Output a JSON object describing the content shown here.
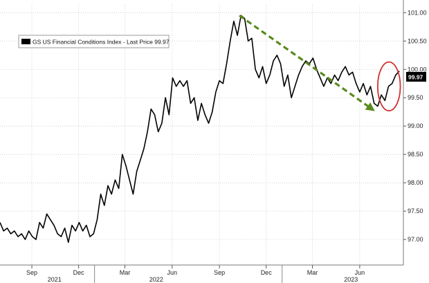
{
  "chart_data": {
    "type": "line",
    "title": "",
    "legend": {
      "entries": [
        "GS US Financial Conditions Index - Last Price 99.97"
      ],
      "placement": "top-left"
    },
    "last_price_label": "99.97",
    "ylim": [
      96.55,
      101.15
    ],
    "y_ticks": [
      "101.00",
      "100.50",
      "100.00",
      "99.50",
      "99.00",
      "98.50",
      "98.00",
      "97.50",
      "97.00"
    ],
    "y_tick_values": [
      101.0,
      100.5,
      100.0,
      99.5,
      99.0,
      98.5,
      98.0,
      97.5,
      97.0
    ],
    "x_ticks": [
      "Sep",
      "Dec",
      "Mar",
      "Jun",
      "Sep",
      "Dec",
      "Mar",
      "Jun"
    ],
    "x_tick_dates": [
      "2021-09-01",
      "2021-12-01",
      "2022-03-01",
      "2022-06-01",
      "2022-09-01",
      "2022-12-01",
      "2023-03-01",
      "2023-06-01"
    ],
    "years": [
      "2021",
      "2022",
      "2023"
    ],
    "year_dates": [
      "2021-10-15",
      "2022-05-01",
      "2023-05-15"
    ],
    "xlim": [
      "2021-07-01",
      "2023-08-25"
    ],
    "grid": true,
    "series": [
      {
        "name": "GS US Financial Conditions Index",
        "color": "#000000",
        "points": [
          [
            "2021-07-01",
            97.3
          ],
          [
            "2021-07-08",
            97.15
          ],
          [
            "2021-07-15",
            97.2
          ],
          [
            "2021-07-22",
            97.1
          ],
          [
            "2021-07-29",
            97.15
          ],
          [
            "2021-08-05",
            97.05
          ],
          [
            "2021-08-12",
            97.1
          ],
          [
            "2021-08-19",
            97.0
          ],
          [
            "2021-08-26",
            97.15
          ],
          [
            "2021-09-02",
            97.05
          ],
          [
            "2021-09-09",
            97.0
          ],
          [
            "2021-09-16",
            97.3
          ],
          [
            "2021-09-23",
            97.2
          ],
          [
            "2021-09-30",
            97.45
          ],
          [
            "2021-10-07",
            97.35
          ],
          [
            "2021-10-14",
            97.25
          ],
          [
            "2021-10-21",
            97.1
          ],
          [
            "2021-10-28",
            97.05
          ],
          [
            "2021-11-04",
            97.2
          ],
          [
            "2021-11-11",
            96.95
          ],
          [
            "2021-11-18",
            97.25
          ],
          [
            "2021-11-25",
            97.15
          ],
          [
            "2021-12-02",
            97.3
          ],
          [
            "2021-12-09",
            97.15
          ],
          [
            "2021-12-16",
            97.25
          ],
          [
            "2021-12-23",
            97.05
          ],
          [
            "2021-12-30",
            97.1
          ],
          [
            "2022-01-06",
            97.35
          ],
          [
            "2022-01-13",
            97.8
          ],
          [
            "2022-01-20",
            97.6
          ],
          [
            "2022-01-27",
            97.95
          ],
          [
            "2022-02-03",
            97.8
          ],
          [
            "2022-02-10",
            98.05
          ],
          [
            "2022-02-17",
            97.9
          ],
          [
            "2022-02-24",
            98.5
          ],
          [
            "2022-03-03",
            98.3
          ],
          [
            "2022-03-10",
            98.05
          ],
          [
            "2022-03-17",
            97.8
          ],
          [
            "2022-03-24",
            98.2
          ],
          [
            "2022-03-31",
            98.4
          ],
          [
            "2022-04-07",
            98.6
          ],
          [
            "2022-04-14",
            98.9
          ],
          [
            "2022-04-21",
            99.3
          ],
          [
            "2022-04-28",
            99.2
          ],
          [
            "2022-05-05",
            98.9
          ],
          [
            "2022-05-12",
            99.05
          ],
          [
            "2022-05-19",
            99.5
          ],
          [
            "2022-05-26",
            99.2
          ],
          [
            "2022-06-02",
            99.85
          ],
          [
            "2022-06-09",
            99.7
          ],
          [
            "2022-06-16",
            99.8
          ],
          [
            "2022-06-23",
            99.7
          ],
          [
            "2022-06-30",
            99.8
          ],
          [
            "2022-07-07",
            99.4
          ],
          [
            "2022-07-14",
            99.5
          ],
          [
            "2022-07-21",
            99.1
          ],
          [
            "2022-07-28",
            99.4
          ],
          [
            "2022-08-04",
            99.2
          ],
          [
            "2022-08-11",
            99.05
          ],
          [
            "2022-08-18",
            99.25
          ],
          [
            "2022-08-25",
            99.6
          ],
          [
            "2022-09-01",
            99.8
          ],
          [
            "2022-09-08",
            99.75
          ],
          [
            "2022-09-15",
            100.1
          ],
          [
            "2022-09-22",
            100.5
          ],
          [
            "2022-09-29",
            100.85
          ],
          [
            "2022-10-06",
            100.6
          ],
          [
            "2022-10-13",
            100.95
          ],
          [
            "2022-10-20",
            100.9
          ],
          [
            "2022-10-27",
            100.5
          ],
          [
            "2022-11-03",
            100.55
          ],
          [
            "2022-11-10",
            100.0
          ],
          [
            "2022-11-17",
            99.85
          ],
          [
            "2022-11-24",
            100.05
          ],
          [
            "2022-12-01",
            99.75
          ],
          [
            "2022-12-08",
            99.9
          ],
          [
            "2022-12-15",
            100.15
          ],
          [
            "2022-12-22",
            100.25
          ],
          [
            "2022-12-29",
            100.1
          ],
          [
            "2023-01-05",
            99.7
          ],
          [
            "2023-01-12",
            99.9
          ],
          [
            "2023-01-19",
            99.5
          ],
          [
            "2023-01-26",
            99.7
          ],
          [
            "2023-02-02",
            99.9
          ],
          [
            "2023-02-09",
            100.05
          ],
          [
            "2023-02-16",
            100.15
          ],
          [
            "2023-02-23",
            100.1
          ],
          [
            "2023-03-02",
            100.2
          ],
          [
            "2023-03-09",
            100.0
          ],
          [
            "2023-03-16",
            99.85
          ],
          [
            "2023-03-23",
            99.7
          ],
          [
            "2023-03-30",
            99.85
          ],
          [
            "2023-04-06",
            99.75
          ],
          [
            "2023-04-13",
            99.9
          ],
          [
            "2023-04-20",
            99.8
          ],
          [
            "2023-04-27",
            99.95
          ],
          [
            "2023-05-04",
            100.05
          ],
          [
            "2023-05-11",
            99.9
          ],
          [
            "2023-05-18",
            99.95
          ],
          [
            "2023-05-25",
            99.75
          ],
          [
            "2023-06-01",
            99.6
          ],
          [
            "2023-06-08",
            99.75
          ],
          [
            "2023-06-15",
            99.55
          ],
          [
            "2023-06-22",
            99.7
          ],
          [
            "2023-06-29",
            99.4
          ],
          [
            "2023-07-06",
            99.35
          ],
          [
            "2023-07-13",
            99.55
          ],
          [
            "2023-07-20",
            99.45
          ],
          [
            "2023-07-27",
            99.7
          ],
          [
            "2023-08-03",
            99.75
          ],
          [
            "2023-08-10",
            99.9
          ],
          [
            "2023-08-17",
            99.97
          ]
        ]
      }
    ],
    "annotations": [
      {
        "type": "dashed-arrow",
        "color": "#5a8a1e",
        "from": [
          "2022-10-10",
          100.95
        ],
        "to": [
          "2023-06-25",
          99.3
        ]
      },
      {
        "type": "ellipse",
        "color": "#d03030",
        "center": [
          "2023-07-28",
          99.7
        ],
        "rx_days": 22,
        "ry": 0.43
      }
    ]
  }
}
